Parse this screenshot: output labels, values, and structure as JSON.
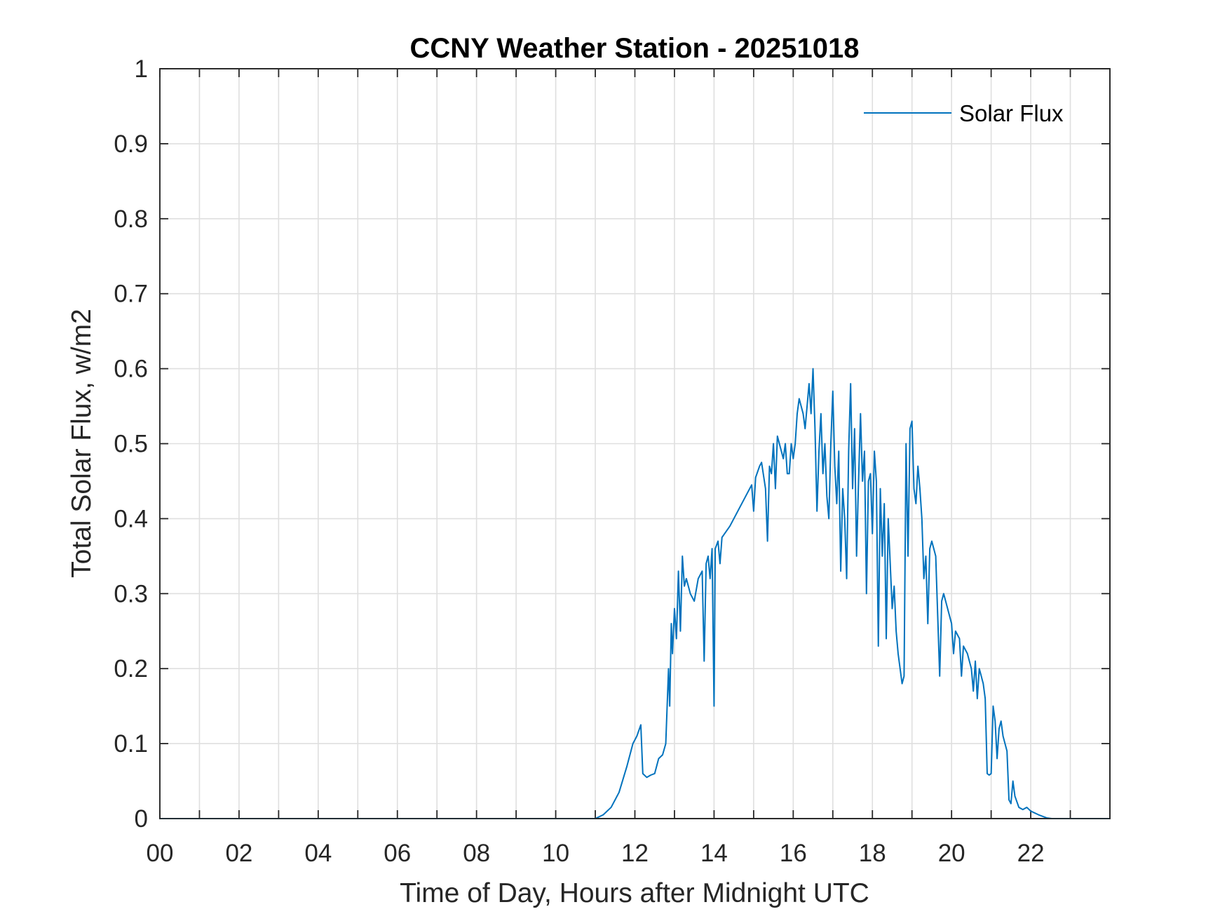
{
  "chart_data": {
    "type": "line",
    "title": "CCNY Weather Station - 20251018",
    "xlabel": "Time of Day, Hours after Midnight UTC",
    "ylabel": "Total Solar Flux, w/m2",
    "xlim": [
      0,
      24
    ],
    "ylim": [
      0,
      1
    ],
    "grid": true,
    "x_ticks": [
      0,
      1,
      2,
      3,
      4,
      5,
      6,
      7,
      8,
      9,
      10,
      11,
      12,
      13,
      14,
      15,
      16,
      17,
      18,
      19,
      20,
      21,
      22,
      23
    ],
    "x_tick_labels": [
      {
        "value": 0,
        "label": "00"
      },
      {
        "value": 2,
        "label": "02"
      },
      {
        "value": 4,
        "label": "04"
      },
      {
        "value": 6,
        "label": "06"
      },
      {
        "value": 8,
        "label": "08"
      },
      {
        "value": 10,
        "label": "10"
      },
      {
        "value": 12,
        "label": "12"
      },
      {
        "value": 14,
        "label": "14"
      },
      {
        "value": 16,
        "label": "16"
      },
      {
        "value": 18,
        "label": "18"
      },
      {
        "value": 20,
        "label": "20"
      },
      {
        "value": 22,
        "label": "22"
      }
    ],
    "y_ticks": [
      {
        "value": 0,
        "label": "0"
      },
      {
        "value": 0.1,
        "label": "0.1"
      },
      {
        "value": 0.2,
        "label": "0.2"
      },
      {
        "value": 0.3,
        "label": "0.3"
      },
      {
        "value": 0.4,
        "label": "0.4"
      },
      {
        "value": 0.5,
        "label": "0.5"
      },
      {
        "value": 0.6,
        "label": "0.6"
      },
      {
        "value": 0.7,
        "label": "0.7"
      },
      {
        "value": 0.8,
        "label": "0.8"
      },
      {
        "value": 0.9,
        "label": "0.9"
      },
      {
        "value": 1,
        "label": "1"
      }
    ],
    "legend": {
      "placement": "top-right",
      "entries": [
        "Solar Flux"
      ]
    },
    "series": [
      {
        "name": "Solar Flux",
        "color": "#0072bd",
        "x": [
          0,
          11.0,
          11.2,
          11.4,
          11.6,
          11.8,
          11.95,
          12.05,
          12.15,
          12.2,
          12.3,
          12.4,
          12.5,
          12.6,
          12.7,
          12.78,
          12.85,
          12.88,
          12.92,
          12.95,
          13.0,
          13.05,
          13.1,
          13.15,
          13.2,
          13.25,
          13.3,
          13.4,
          13.5,
          13.6,
          13.7,
          13.75,
          13.8,
          13.85,
          13.9,
          13.95,
          14.0,
          14.03,
          14.1,
          14.15,
          14.2,
          14.4,
          14.6,
          14.8,
          14.95,
          15.0,
          15.05,
          15.15,
          15.2,
          15.3,
          15.35,
          15.4,
          15.45,
          15.5,
          15.55,
          15.6,
          15.7,
          15.75,
          15.8,
          15.85,
          15.9,
          15.95,
          16.0,
          16.05,
          16.1,
          16.15,
          16.25,
          16.3,
          16.4,
          16.45,
          16.5,
          16.55,
          16.6,
          16.65,
          16.7,
          16.75,
          16.8,
          16.85,
          16.9,
          16.95,
          17.0,
          17.05,
          17.1,
          17.15,
          17.2,
          17.25,
          17.3,
          17.35,
          17.4,
          17.45,
          17.5,
          17.55,
          17.6,
          17.65,
          17.7,
          17.75,
          17.8,
          17.85,
          17.9,
          17.95,
          18.0,
          18.05,
          18.1,
          18.15,
          18.2,
          18.25,
          18.3,
          18.35,
          18.4,
          18.45,
          18.5,
          18.55,
          18.6,
          18.65,
          18.7,
          18.75,
          18.8,
          18.85,
          18.9,
          18.95,
          19.0,
          19.05,
          19.1,
          19.15,
          19.2,
          19.25,
          19.3,
          19.35,
          19.4,
          19.45,
          19.5,
          19.55,
          19.6,
          19.7,
          19.75,
          19.8,
          19.9,
          20.0,
          20.05,
          20.1,
          20.2,
          20.25,
          20.3,
          20.4,
          20.5,
          20.55,
          20.6,
          20.65,
          20.7,
          20.8,
          20.85,
          20.9,
          20.95,
          21.0,
          21.05,
          21.1,
          21.15,
          21.2,
          21.25,
          21.3,
          21.4,
          21.45,
          21.5,
          21.55,
          21.6,
          21.7,
          21.8,
          21.9,
          22.0,
          22.2,
          22.4,
          22.53,
          24
        ],
        "y": [
          0,
          0,
          0.005,
          0.015,
          0.035,
          0.07,
          0.1,
          0.11,
          0.125,
          0.06,
          0.055,
          0.058,
          0.06,
          0.08,
          0.085,
          0.1,
          0.2,
          0.15,
          0.26,
          0.22,
          0.28,
          0.24,
          0.33,
          0.25,
          0.35,
          0.31,
          0.32,
          0.3,
          0.29,
          0.32,
          0.33,
          0.21,
          0.34,
          0.35,
          0.32,
          0.36,
          0.15,
          0.36,
          0.37,
          0.34,
          0.375,
          0.39,
          0.41,
          0.43,
          0.445,
          0.41,
          0.455,
          0.47,
          0.475,
          0.44,
          0.37,
          0.47,
          0.46,
          0.5,
          0.44,
          0.51,
          0.49,
          0.48,
          0.5,
          0.46,
          0.46,
          0.5,
          0.48,
          0.5,
          0.54,
          0.56,
          0.54,
          0.52,
          0.58,
          0.54,
          0.6,
          0.52,
          0.41,
          0.49,
          0.54,
          0.46,
          0.5,
          0.43,
          0.4,
          0.5,
          0.57,
          0.47,
          0.42,
          0.49,
          0.33,
          0.44,
          0.4,
          0.32,
          0.49,
          0.58,
          0.44,
          0.52,
          0.35,
          0.45,
          0.54,
          0.45,
          0.49,
          0.3,
          0.45,
          0.46,
          0.38,
          0.49,
          0.45,
          0.23,
          0.44,
          0.35,
          0.42,
          0.24,
          0.4,
          0.34,
          0.28,
          0.31,
          0.25,
          0.22,
          0.2,
          0.18,
          0.19,
          0.5,
          0.35,
          0.52,
          0.53,
          0.44,
          0.42,
          0.47,
          0.44,
          0.4,
          0.32,
          0.35,
          0.26,
          0.36,
          0.37,
          0.36,
          0.35,
          0.19,
          0.29,
          0.3,
          0.28,
          0.26,
          0.22,
          0.25,
          0.24,
          0.19,
          0.23,
          0.22,
          0.2,
          0.17,
          0.21,
          0.16,
          0.2,
          0.18,
          0.16,
          0.06,
          0.058,
          0.06,
          0.15,
          0.13,
          0.08,
          0.12,
          0.13,
          0.11,
          0.09,
          0.025,
          0.02,
          0.05,
          0.03,
          0.015,
          0.012,
          0.015,
          0.01,
          0.005,
          0.001,
          0,
          0
        ]
      }
    ]
  }
}
